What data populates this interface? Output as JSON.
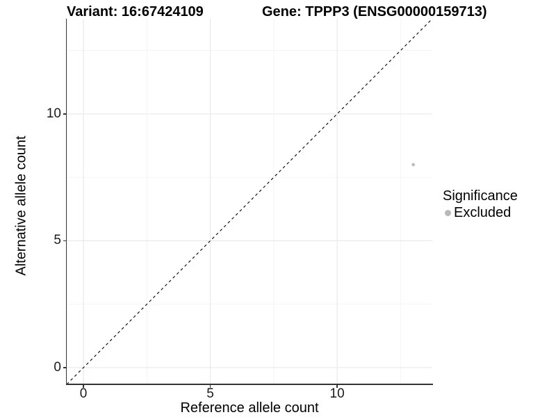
{
  "header": {
    "variant_title": "Variant: 16:67424109",
    "gene_title": "Gene: TPPP3 (ENSG00000159713)"
  },
  "chart_data": {
    "type": "scatter",
    "xlabel": "Reference allele count",
    "ylabel": "Alternative allele count",
    "xlim": [
      -0.66,
      13.75
    ],
    "ylim": [
      -0.66,
      13.75
    ],
    "x_ticks": [
      0,
      5,
      10
    ],
    "y_ticks": [
      0,
      5,
      10
    ],
    "x_minor_ticks": [
      2.5,
      7.5,
      12.5
    ],
    "y_minor_ticks": [
      2.5,
      7.5,
      12.5
    ],
    "grid": "major+minor",
    "points": [
      {
        "x": 13,
        "y": 8,
        "significance": "Excluded"
      }
    ],
    "identity_line": {
      "type": "abline",
      "slope": 1,
      "intercept": 0,
      "style": "dashed",
      "color": "#000000"
    },
    "legend": {
      "title": "Significance",
      "position": "right",
      "entries": [
        {
          "label": "Excluded",
          "marker": "circle",
          "color": "#b9b9b9"
        }
      ]
    }
  },
  "colors": {
    "background": "#ffffff",
    "point": "#bdbdbd",
    "axis_line": "#333333",
    "grid_major": "#e8e8e8",
    "grid_minor": "#f3f3f3",
    "dashed_line": "#000000"
  }
}
